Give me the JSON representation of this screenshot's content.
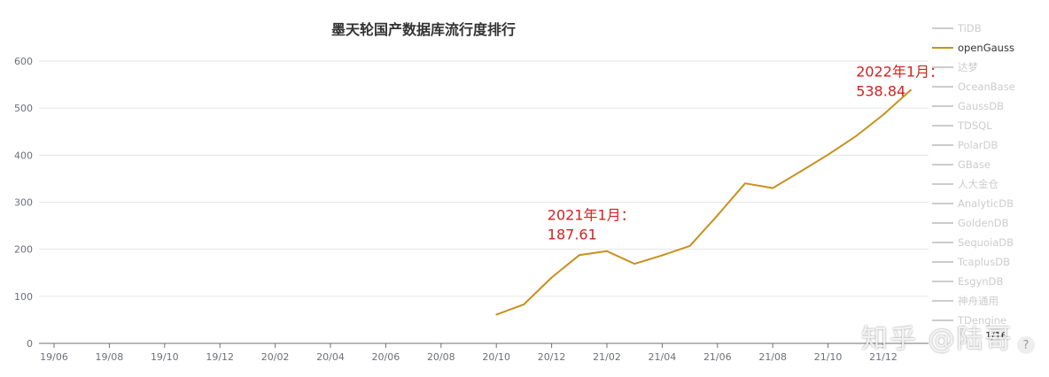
{
  "colors": {
    "series": "#c8901c",
    "annotation": "#d42020",
    "axis": "#6e7079",
    "legend_inactive": "#cccccc",
    "legend_active": "#333333"
  },
  "chart_data": {
    "type": "line",
    "title": "墨天轮国产数据库流行度排行",
    "x_ticks": [
      "19/06",
      "19/08",
      "19/10",
      "19/12",
      "20/02",
      "20/04",
      "20/06",
      "20/08",
      "20/10",
      "20/12",
      "21/02",
      "21/04",
      "21/06",
      "21/08",
      "21/10",
      "21/12"
    ],
    "y_ticks": [
      0,
      100,
      200,
      300,
      400,
      500,
      600
    ],
    "ylim": [
      0,
      600
    ],
    "grid": true,
    "legend_placement": "right",
    "series": [
      {
        "name": "openGauss",
        "active": true,
        "x": [
          "20/10",
          "20/11",
          "20/12",
          "21/01",
          "21/02",
          "21/03",
          "21/04",
          "21/05",
          "21/06",
          "21/07",
          "21/08",
          "21/09",
          "21/10",
          "21/11",
          "21/12",
          "22/01"
        ],
        "values": [
          61,
          83,
          140,
          187.61,
          196,
          169,
          187,
          207,
          272,
          340,
          330,
          365,
          401,
          440,
          486,
          538.84
        ]
      }
    ],
    "legend": [
      "TiDB",
      "openGauss",
      "达梦",
      "OceanBase",
      "GaussDB",
      "TDSQL",
      "PolarDB",
      "GBase",
      "人大金仓",
      "AnalyticDB",
      "GoldenDB",
      "SequoiaDB",
      "TcaplusDB",
      "EsgynDB",
      "神舟通用",
      "TDengine"
    ],
    "annotations": [
      {
        "x": "21/01",
        "y": 187.61,
        "line1": "2021年1月：",
        "line2": "187.61"
      },
      {
        "x": "22/01",
        "y": 538.84,
        "line1": "2022年1月：",
        "line2": "538.84"
      }
    ],
    "pager": "1/16"
  },
  "watermark": "知乎 @陆哥",
  "help_icon": "?"
}
